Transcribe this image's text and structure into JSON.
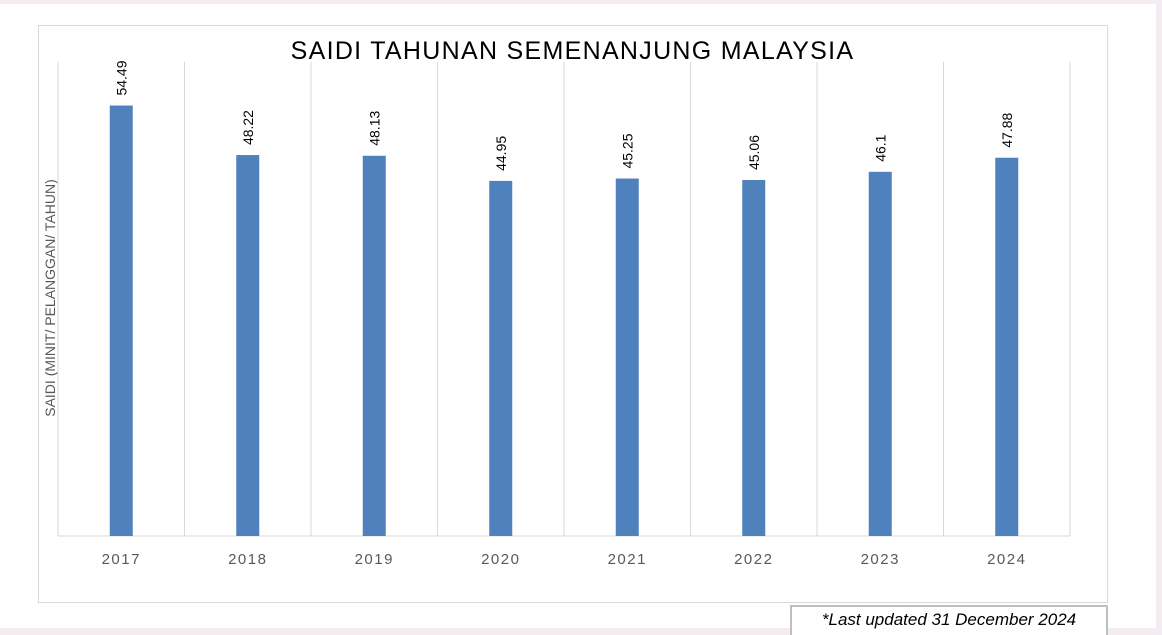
{
  "chart_data": {
    "type": "bar",
    "title": "SAIDI TAHUNAN SEMENANJUNG MALAYSIA",
    "xlabel": "",
    "ylabel": "SAIDI (MINIT/ PELANGGAN/ TAHUN)",
    "categories": [
      "2017",
      "2018",
      "2019",
      "2020",
      "2021",
      "2022",
      "2023",
      "2024"
    ],
    "series": [
      {
        "values": [
          54.49,
          48.22,
          48.13,
          44.95,
          45.25,
          45.06,
          46.1,
          47.88
        ],
        "color": "#4f81bd"
      }
    ],
    "data_labels": [
      "54.49",
      "48.22",
      "48.13",
      "44.95",
      "45.25",
      "45.06",
      "46.1",
      "47.88"
    ],
    "ylim": [
      0,
      60
    ],
    "grid": "vertical",
    "legend": "none"
  },
  "footer": {
    "note": "*Last updated 31 December 2024"
  }
}
